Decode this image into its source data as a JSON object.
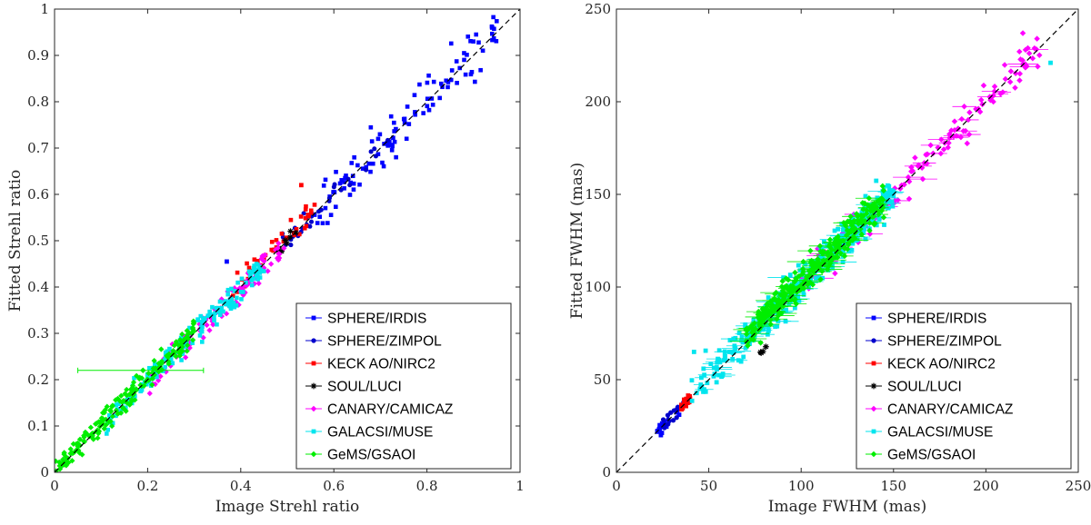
{
  "chart_data": [
    {
      "type": "scatter",
      "id": "strehl",
      "xlabel": "Image Strehl ratio",
      "ylabel": "Fitted Strehl ratio",
      "xlim": [
        0,
        1
      ],
      "ylim": [
        0,
        1
      ],
      "xticks": [
        0,
        0.2,
        0.4,
        0.6,
        0.8,
        1
      ],
      "xtick_labels": [
        "0",
        "0.2",
        "0.4",
        "0.6",
        "0.8",
        "1"
      ],
      "yticks": [
        0,
        0.1,
        0.2,
        0.3,
        0.4,
        0.5,
        0.6,
        0.7,
        0.8,
        0.9,
        1
      ],
      "ytick_labels": [
        "0",
        "0.1",
        "0.2",
        "0.3",
        "0.4",
        "0.5",
        "0.6",
        "0.7",
        "0.8",
        "0.9",
        "1"
      ],
      "reference_line": "y = x",
      "legend_position": "bottom-right",
      "series": [
        {
          "name": "SPHERE/IRDIS",
          "color": "#0000ff",
          "marker": "square",
          "range": [
            0.55,
            0.95
          ],
          "count": 110,
          "spread": 0.028,
          "bias": 0.0
        },
        {
          "name": "SPHERE/ZIMPOL",
          "color": "#0000cc",
          "marker": "circle",
          "range": [
            0.48,
            0.72
          ],
          "count": 30,
          "spread": 0.012,
          "bias": 0.0
        },
        {
          "name": "KECK AO/NIRC2",
          "color": "#ff0000",
          "marker": "square",
          "range": [
            0.38,
            0.56
          ],
          "count": 45,
          "spread": 0.014,
          "bias": 0.01
        },
        {
          "name": "SOUL/LUCI",
          "color": "#000000",
          "marker": "star",
          "range": [
            0.48,
            0.52
          ],
          "count": 8,
          "spread": 0.006,
          "bias": 0.0
        },
        {
          "name": "CANARY/CAMICAZ",
          "color": "#ff00ff",
          "marker": "diamond",
          "range": [
            0.2,
            0.5
          ],
          "count": 110,
          "spread": 0.014,
          "bias": -0.008
        },
        {
          "name": "GALACSI/MUSE",
          "color": "#00e5ee",
          "marker": "square",
          "range": [
            0.1,
            0.45
          ],
          "count": 170,
          "spread": 0.012,
          "bias": 0.0
        },
        {
          "name": "GeMS/GSAOI",
          "color": "#00ee00",
          "marker": "diamond",
          "range": [
            0.0,
            0.3
          ],
          "count": 210,
          "spread": 0.012,
          "bias": 0.004
        }
      ],
      "special_point": {
        "x": 0.19,
        "y": 0.22,
        "xerr_low": 0.05,
        "xerr_high": 0.32,
        "series": "GeMS/GSAOI"
      },
      "outliers": [
        {
          "x": 0.37,
          "y": 0.455,
          "series": "SPHERE/IRDIS"
        },
        {
          "x": 0.53,
          "y": 0.62,
          "series": "KECK AO/NIRC2"
        },
        {
          "x": 0.94,
          "y": 0.96,
          "series": "SPHERE/IRDIS"
        }
      ]
    },
    {
      "type": "scatter",
      "id": "fwhm",
      "xlabel": "Image FWHM (mas)",
      "ylabel": "Fitted FWHM (mas)",
      "xlim": [
        0,
        250
      ],
      "ylim": [
        0,
        250
      ],
      "xticks": [
        0,
        50,
        100,
        150,
        200,
        250
      ],
      "xtick_labels": [
        "0",
        "50",
        "100",
        "150",
        "200",
        "250"
      ],
      "yticks": [
        0,
        50,
        100,
        150,
        200,
        250
      ],
      "ytick_labels": [
        "0",
        "50",
        "100",
        "150",
        "200",
        "250"
      ],
      "reference_line": "y = x",
      "legend_position": "bottom-right",
      "series": [
        {
          "name": "SPHERE/IRDIS",
          "color": "#0000ff",
          "marker": "square",
          "range": [
            22,
            35
          ],
          "count": 18,
          "spread": 1.5,
          "bias": 0.0
        },
        {
          "name": "SPHERE/ZIMPOL",
          "color": "#0000cc",
          "marker": "circle",
          "range": [
            25,
            38
          ],
          "count": 16,
          "spread": 1.5,
          "bias": 0.0
        },
        {
          "name": "KECK AO/NIRC2",
          "color": "#ff0000",
          "marker": "square",
          "range": [
            35,
            40
          ],
          "count": 40,
          "spread": 1.0,
          "bias": 0.0
        },
        {
          "name": "SOUL/LUCI",
          "color": "#000000",
          "marker": "star",
          "range": [
            78,
            84
          ],
          "count": 4,
          "spread": 1.0,
          "bias": -14
        },
        {
          "name": "CANARY/CAMICAZ",
          "color": "#ff00ff",
          "marker": "diamond",
          "range": [
            100,
            230
          ],
          "count": 150,
          "spread": 4.5,
          "bias": 0.0
        },
        {
          "name": "GALACSI/MUSE",
          "color": "#00e5ee",
          "marker": "square",
          "range": [
            40,
            150
          ],
          "count": 400,
          "spread": 4.5,
          "bias": 2.0
        },
        {
          "name": "GeMS/GSAOI",
          "color": "#00ee00",
          "marker": "diamond",
          "range": [
            70,
            145
          ],
          "count": 320,
          "spread": 4.0,
          "bias": 3.0
        }
      ],
      "outliers": [
        {
          "x": 235,
          "y": 221,
          "series": "GALACSI/MUSE"
        },
        {
          "x": 220,
          "y": 237,
          "series": "CANARY/CAMICAZ"
        },
        {
          "x": 42,
          "y": 65,
          "series": "GALACSI/MUSE"
        }
      ]
    }
  ]
}
